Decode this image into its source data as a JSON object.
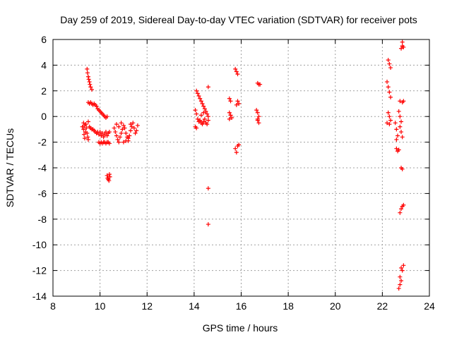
{
  "chart_data": {
    "type": "scatter",
    "title": "Day 259 of 2019, Sidereal Day-to-day VTEC variation (SDTVAR) for receiver pots",
    "xlabel": "GPS time / hours",
    "ylabel": "SDTVAR / TECUs",
    "xlim": [
      8,
      24
    ],
    "ylim": [
      -14,
      6
    ],
    "xticks": [
      8,
      10,
      12,
      14,
      16,
      18,
      20,
      22,
      24
    ],
    "yticks": [
      -14,
      -12,
      -10,
      -8,
      -6,
      -4,
      -2,
      0,
      2,
      4,
      6
    ],
    "grid": true,
    "legend": "none",
    "marker": "+",
    "color": "#ff0000",
    "series": [
      {
        "points": [
          [
            9.25,
            -0.8
          ],
          [
            9.3,
            -1.0
          ],
          [
            9.32,
            -1.4
          ],
          [
            9.35,
            -1.7
          ],
          [
            9.38,
            -1.2
          ],
          [
            9.4,
            -0.6
          ],
          [
            9.42,
            -0.9
          ],
          [
            9.45,
            -1.3
          ],
          [
            9.48,
            -1.6
          ],
          [
            9.5,
            -1.8
          ],
          [
            9.3,
            -0.5
          ],
          [
            9.35,
            -0.7
          ],
          [
            9.5,
            -0.4
          ],
          [
            9.55,
            -0.8
          ],
          [
            9.6,
            -0.9
          ],
          [
            9.65,
            -1.0
          ],
          [
            9.7,
            -1.0
          ],
          [
            9.75,
            -1.1
          ],
          [
            9.8,
            -1.2
          ],
          [
            9.85,
            -1.3
          ],
          [
            9.45,
            3.7
          ],
          [
            9.47,
            3.4
          ],
          [
            9.5,
            3.1
          ],
          [
            9.52,
            2.9
          ],
          [
            9.55,
            2.7
          ],
          [
            9.57,
            2.5
          ],
          [
            9.6,
            2.3
          ],
          [
            9.65,
            2.1
          ],
          [
            9.5,
            1.1
          ],
          [
            9.55,
            1.0
          ],
          [
            9.6,
            1.1
          ],
          [
            9.65,
            1.0
          ],
          [
            9.7,
            0.9
          ],
          [
            9.75,
            1.0
          ],
          [
            9.8,
            0.9
          ],
          [
            9.85,
            0.8
          ],
          [
            9.9,
            0.6
          ],
          [
            9.95,
            0.5
          ],
          [
            10.0,
            0.4
          ],
          [
            10.05,
            0.3
          ],
          [
            10.1,
            0.2
          ],
          [
            10.15,
            0.1
          ],
          [
            10.2,
            0.0
          ],
          [
            10.25,
            -0.1
          ],
          [
            10.3,
            0.0
          ],
          [
            9.9,
            -1.2
          ],
          [
            9.95,
            -1.4
          ],
          [
            10.0,
            -1.2
          ],
          [
            10.05,
            -1.5
          ],
          [
            10.1,
            -1.3
          ],
          [
            10.15,
            -1.6
          ],
          [
            10.2,
            -1.4
          ],
          [
            10.25,
            -1.2
          ],
          [
            10.3,
            -1.5
          ],
          [
            10.35,
            -1.3
          ],
          [
            10.4,
            -1.2
          ],
          [
            9.95,
            -2.0
          ],
          [
            10.0,
            -2.1
          ],
          [
            10.05,
            -2.0
          ],
          [
            10.1,
            -2.1
          ],
          [
            10.15,
            -2.0
          ],
          [
            10.2,
            -2.0
          ],
          [
            10.25,
            -2.1
          ],
          [
            10.3,
            -2.0
          ],
          [
            10.35,
            -2.0
          ],
          [
            10.4,
            -2.1
          ],
          [
            10.3,
            -4.6
          ],
          [
            10.32,
            -4.8
          ],
          [
            10.35,
            -4.9
          ],
          [
            10.38,
            -5.0
          ],
          [
            10.4,
            -4.5
          ],
          [
            10.42,
            -4.7
          ],
          [
            10.6,
            -0.9
          ],
          [
            10.65,
            -1.2
          ],
          [
            10.7,
            -1.5
          ],
          [
            10.75,
            -1.8
          ],
          [
            10.8,
            -2.0
          ],
          [
            10.85,
            -1.6
          ],
          [
            10.9,
            -1.3
          ],
          [
            10.95,
            -1.0
          ],
          [
            11.0,
            -0.7
          ],
          [
            11.05,
            -0.9
          ],
          [
            11.1,
            -1.3
          ],
          [
            11.15,
            -1.6
          ],
          [
            11.2,
            -1.9
          ],
          [
            11.25,
            -1.5
          ],
          [
            11.3,
            -1.1
          ],
          [
            11.35,
            -0.8
          ],
          [
            11.4,
            -0.5
          ],
          [
            11.45,
            -0.9
          ],
          [
            11.5,
            -1.3
          ],
          [
            11.55,
            -1.1
          ],
          [
            11.6,
            -0.7
          ],
          [
            11.0,
            -2.0
          ],
          [
            11.1,
            -1.9
          ],
          [
            11.2,
            -1.7
          ],
          [
            10.7,
            -0.6
          ],
          [
            10.8,
            -0.8
          ],
          [
            10.9,
            -0.5
          ],
          [
            11.3,
            -0.6
          ],
          [
            14.1,
            2.0
          ],
          [
            14.15,
            1.8
          ],
          [
            14.2,
            1.6
          ],
          [
            14.25,
            1.4
          ],
          [
            14.3,
            1.2
          ],
          [
            14.35,
            1.0
          ],
          [
            14.4,
            0.8
          ],
          [
            14.45,
            0.6
          ],
          [
            14.5,
            0.4
          ],
          [
            14.55,
            0.2
          ],
          [
            14.6,
            0.0
          ],
          [
            14.05,
            0.5
          ],
          [
            14.1,
            0.2
          ],
          [
            14.15,
            -0.2
          ],
          [
            14.2,
            -0.4
          ],
          [
            14.25,
            -0.3
          ],
          [
            14.3,
            -0.5
          ],
          [
            14.35,
            -0.6
          ],
          [
            14.4,
            -0.4
          ],
          [
            14.45,
            -0.2
          ],
          [
            14.5,
            -0.5
          ],
          [
            14.55,
            -0.6
          ],
          [
            14.6,
            -0.3
          ],
          [
            14.05,
            -0.8
          ],
          [
            14.1,
            -0.9
          ],
          [
            14.3,
            0.1
          ],
          [
            14.4,
            0.3
          ],
          [
            14.6,
            2.3
          ],
          [
            14.6,
            -5.6
          ],
          [
            14.6,
            -8.4
          ],
          [
            15.5,
            1.4
          ],
          [
            15.55,
            1.2
          ],
          [
            15.5,
            0.3
          ],
          [
            15.55,
            0.1
          ],
          [
            15.6,
            -0.1
          ],
          [
            15.5,
            -0.2
          ],
          [
            15.75,
            3.7
          ],
          [
            15.8,
            3.5
          ],
          [
            15.85,
            3.3
          ],
          [
            15.85,
            1.2
          ],
          [
            15.9,
            1.0
          ],
          [
            15.8,
            0.9
          ],
          [
            15.75,
            -2.5
          ],
          [
            15.8,
            -2.8
          ],
          [
            15.85,
            -2.3
          ],
          [
            15.9,
            -2.2
          ],
          [
            16.7,
            2.6
          ],
          [
            16.75,
            2.5
          ],
          [
            16.8,
            2.5
          ],
          [
            16.65,
            0.5
          ],
          [
            16.7,
            0.3
          ],
          [
            16.75,
            0.0
          ],
          [
            16.7,
            -0.2
          ],
          [
            16.75,
            -0.5
          ],
          [
            16.7,
            -0.3
          ],
          [
            22.25,
            4.4
          ],
          [
            22.3,
            4.1
          ],
          [
            22.35,
            3.8
          ],
          [
            22.2,
            2.7
          ],
          [
            22.25,
            2.3
          ],
          [
            22.3,
            1.9
          ],
          [
            22.35,
            1.5
          ],
          [
            22.25,
            0.3
          ],
          [
            22.3,
            0.0
          ],
          [
            22.35,
            -0.3
          ],
          [
            22.3,
            -0.6
          ],
          [
            22.2,
            -0.5
          ],
          [
            22.55,
            -0.5
          ],
          [
            22.6,
            -1.0
          ],
          [
            22.65,
            -1.5
          ],
          [
            22.6,
            -2.5
          ],
          [
            22.65,
            -2.7
          ],
          [
            22.7,
            -2.6
          ],
          [
            22.6,
            -1.8
          ],
          [
            22.7,
            0.4
          ],
          [
            22.75,
            0.0
          ],
          [
            22.8,
            -0.4
          ],
          [
            22.75,
            -0.8
          ],
          [
            22.8,
            -1.2
          ],
          [
            22.85,
            -1.6
          ],
          [
            22.8,
            -4.0
          ],
          [
            22.85,
            -4.1
          ],
          [
            22.75,
            1.2
          ],
          [
            22.85,
            1.1
          ],
          [
            22.9,
            1.2
          ],
          [
            22.8,
            5.3
          ],
          [
            22.85,
            5.5
          ],
          [
            22.9,
            5.4
          ],
          [
            22.85,
            5.8
          ],
          [
            22.75,
            -7.5
          ],
          [
            22.8,
            -7.2
          ],
          [
            22.85,
            -7.0
          ],
          [
            22.9,
            -6.9
          ],
          [
            22.8,
            -11.8
          ],
          [
            22.85,
            -12.0
          ],
          [
            22.9,
            -11.6
          ],
          [
            22.75,
            -12.5
          ],
          [
            22.8,
            -12.8
          ],
          [
            22.75,
            -13.1
          ],
          [
            22.7,
            -13.4
          ]
        ]
      }
    ]
  }
}
